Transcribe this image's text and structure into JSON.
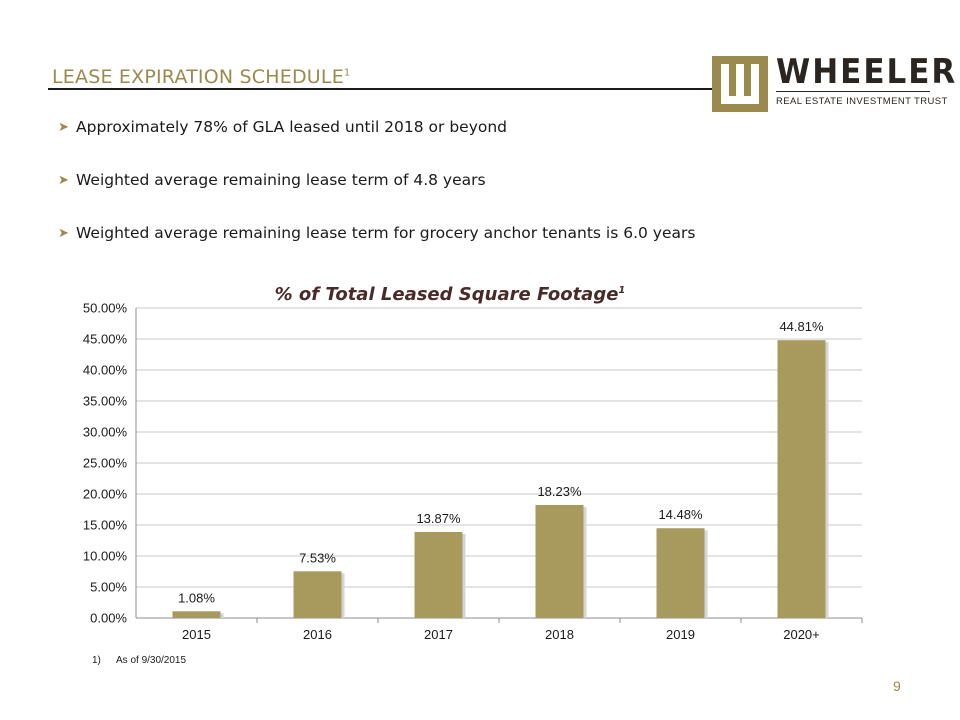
{
  "header": {
    "title": "LEASE EXPIRATION SCHEDULE",
    "title_superscript": "1"
  },
  "logo": {
    "icon": "wheeler-w-mark-icon",
    "name": "WHEELER",
    "tagline": "REAL ESTATE INVESTMENT TRUST"
  },
  "bullets": [
    "Approximately 78% of GLA leased until 2018 or beyond",
    "Weighted average remaining lease term of 4.8 years",
    "Weighted average remaining lease term for grocery anchor tenants is 6.0 years"
  ],
  "bullet_icon": "arrow-right-icon",
  "chart_data": {
    "type": "bar",
    "title": "% of Total Leased Square Footage",
    "title_superscript": "1",
    "categories": [
      "2015",
      "2016",
      "2017",
      "2018",
      "2019",
      "2020+"
    ],
    "values": [
      1.08,
      7.53,
      13.87,
      18.23,
      14.48,
      44.81
    ],
    "data_labels": [
      "1.08%",
      "7.53%",
      "13.87%",
      "18.23%",
      "14.48%",
      "44.81%"
    ],
    "y_ticks": [
      0,
      5,
      10,
      15,
      20,
      25,
      30,
      35,
      40,
      45,
      50
    ],
    "y_tick_labels": [
      "0.00%",
      "5.00%",
      "10.00%",
      "15.00%",
      "20.00%",
      "25.00%",
      "30.00%",
      "35.00%",
      "40.00%",
      "45.00%",
      "50.00%"
    ],
    "ylim": [
      0,
      50
    ],
    "xlabel": "",
    "ylabel": "",
    "grid": true,
    "legend": "none",
    "bar_color": "#a89a5c"
  },
  "footnote": {
    "number": "1)",
    "text": "As of 9/30/2015"
  },
  "page_number": "9",
  "colors": {
    "accent": "#9b8a4e",
    "chart_title": "#4a2a28"
  }
}
